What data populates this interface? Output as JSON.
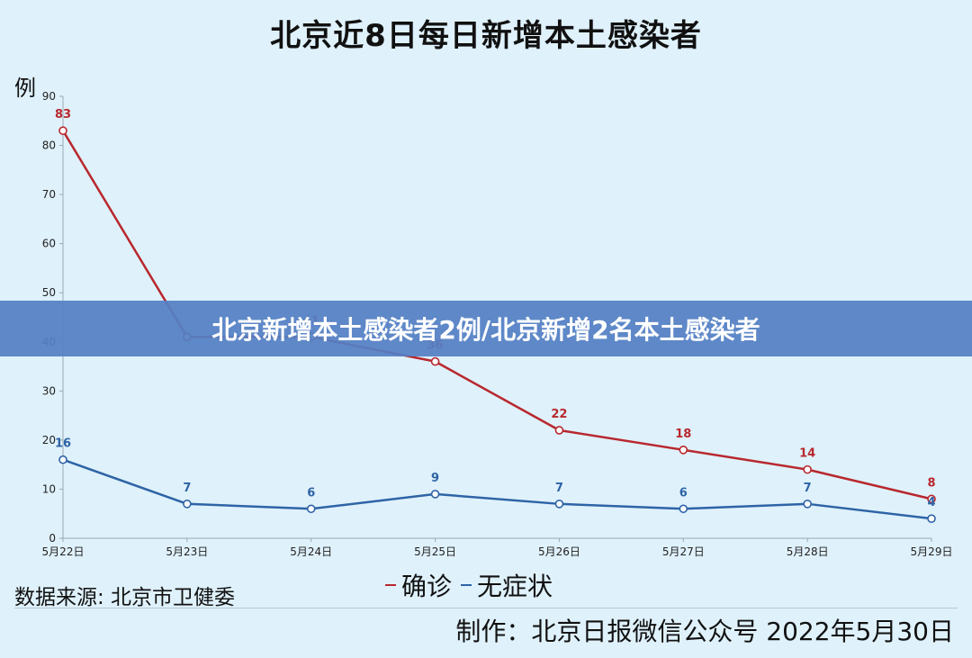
{
  "title": "北京近8日每日新增本土感染者",
  "banner_text": "北京新增本土感染者2例/北京新增2名本土感染者",
  "source": "数据来源: 北京市卫健委",
  "credit": "制作：北京日报微信公众号 2022年5月30日",
  "colors": {
    "confirmed": "#b8282e",
    "asymptomatic": "#2e64a6",
    "background": "#dff1fb",
    "banner": "#5480c4"
  },
  "chart_data": {
    "type": "line",
    "title": "北京近8日每日新增本土感染者",
    "ylabel": "例",
    "xlabel": "",
    "categories": [
      "5月22日",
      "5月23日",
      "5月24日",
      "5月25日",
      "5月26日",
      "5月27日",
      "5月28日",
      "5月29日"
    ],
    "ylim": [
      0,
      90
    ],
    "yticks": [
      0,
      10,
      20,
      30,
      40,
      50,
      60,
      70,
      80,
      90
    ],
    "grid": false,
    "legend": "bottom-center",
    "series": [
      {
        "name": "确诊",
        "color": "#b8282e",
        "values": [
          83,
          41,
          41,
          36,
          22,
          18,
          14,
          8
        ],
        "labels": [
          "83",
          "",
          "41",
          "36",
          "22",
          "18",
          "14",
          "8"
        ]
      },
      {
        "name": "无症状",
        "color": "#2e64a6",
        "values": [
          16,
          7,
          6,
          9,
          7,
          6,
          7,
          4
        ],
        "labels": [
          "16",
          "7",
          "6",
          "9",
          "7",
          "6",
          "7",
          "4"
        ]
      }
    ]
  }
}
